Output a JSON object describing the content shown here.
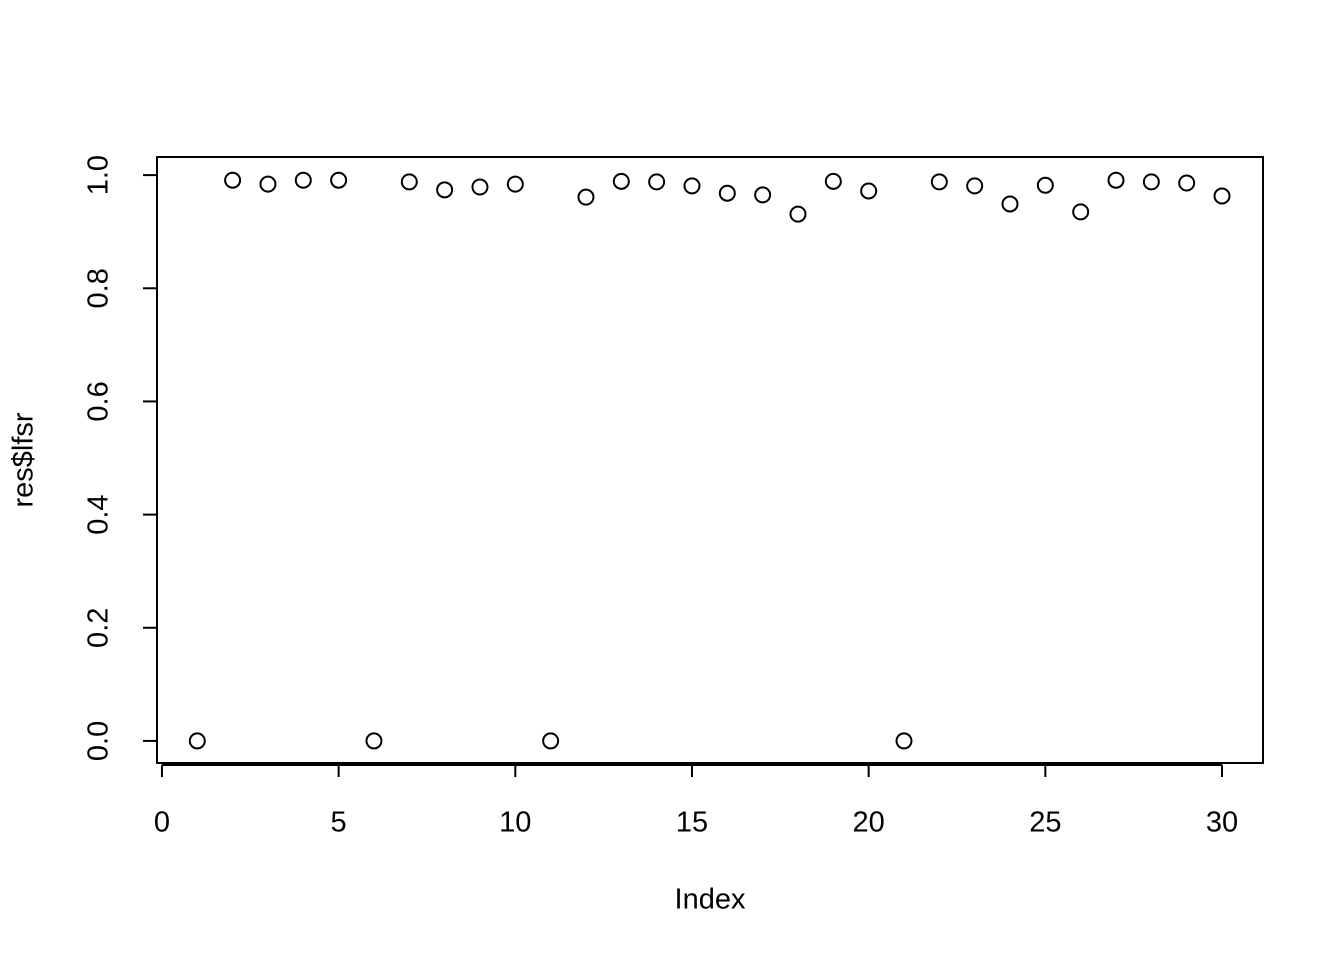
{
  "chart_data": {
    "type": "scatter",
    "x_label": "Index",
    "y_label": "res$lfsr",
    "x": [
      1,
      2,
      3,
      4,
      5,
      6,
      7,
      8,
      9,
      10,
      11,
      12,
      13,
      14,
      15,
      16,
      17,
      18,
      19,
      20,
      21,
      22,
      23,
      24,
      25,
      26,
      27,
      28,
      29,
      30
    ],
    "values": [
      0,
      0.991,
      0.984,
      0.991,
      0.991,
      0,
      0.988,
      0.974,
      0.979,
      0.984,
      0,
      0.961,
      0.989,
      0.988,
      0.981,
      0.968,
      0.965,
      0.931,
      0.989,
      0.972,
      0,
      0.988,
      0.981,
      0.949,
      0.982,
      0.935,
      0.991,
      0.988,
      0.986,
      0.963
    ],
    "color": "#000000",
    "xlim": [
      -0.14,
      31.16
    ],
    "ylim": [
      -0.039,
      1.032
    ],
    "xticks": [
      0,
      5,
      10,
      15,
      20,
      25,
      30
    ],
    "yticks": [
      {
        "value": 0,
        "label": "0.0"
      },
      0.2,
      0.4,
      0.6,
      0.8,
      {
        "value": 1,
        "label": "1.0"
      }
    ]
  }
}
